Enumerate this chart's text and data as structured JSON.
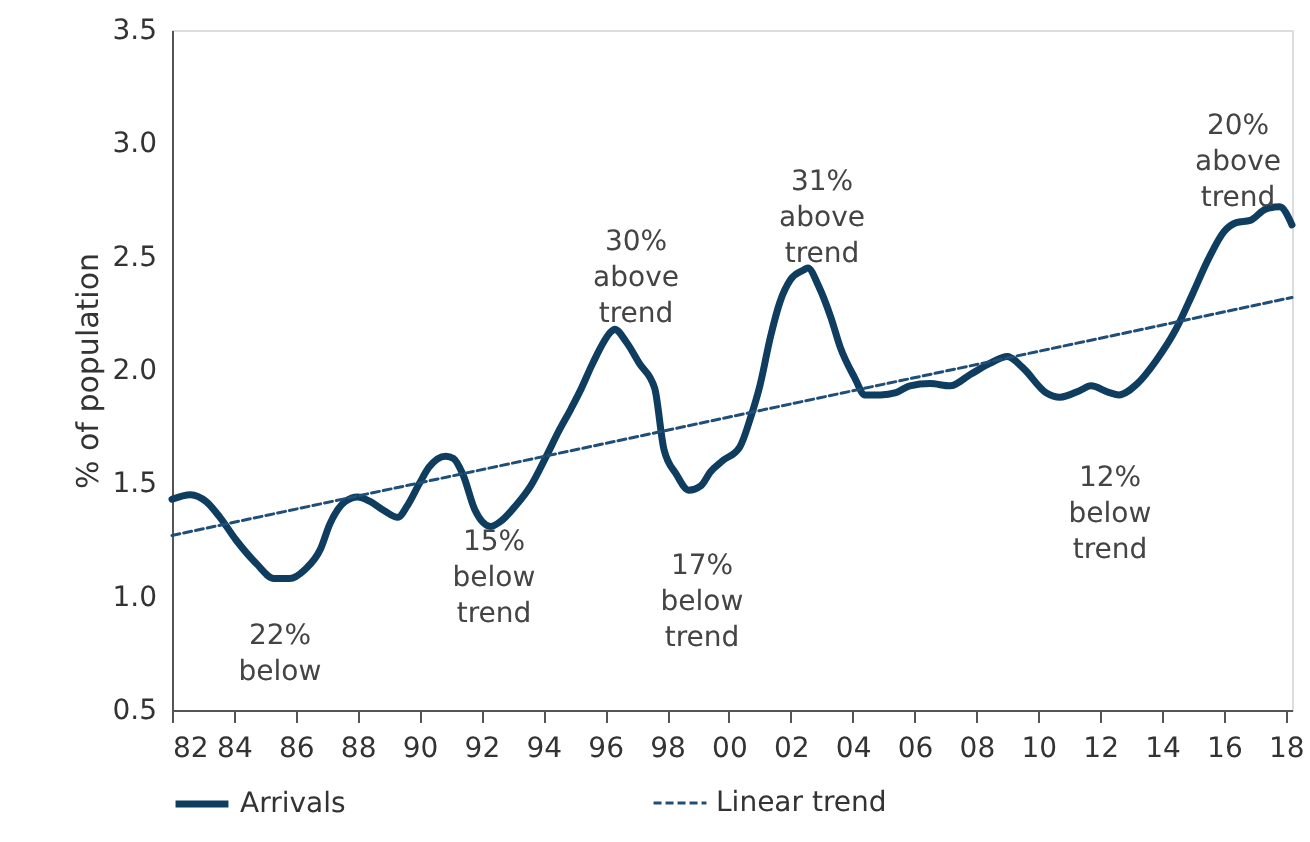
{
  "chart_data": {
    "type": "line",
    "ylabel": "% of population",
    "xlim": [
      1982,
      2018.2
    ],
    "xticks": [
      {
        "value": 1982,
        "label": "82"
      },
      {
        "value": 1984,
        "label": "84"
      },
      {
        "value": 1986,
        "label": "86"
      },
      {
        "value": 1988,
        "label": "88"
      },
      {
        "value": 1990,
        "label": "90"
      },
      {
        "value": 1992,
        "label": "92"
      },
      {
        "value": 1994,
        "label": "94"
      },
      {
        "value": 1996,
        "label": "96"
      },
      {
        "value": 1998,
        "label": "98"
      },
      {
        "value": 2000,
        "label": "00"
      },
      {
        "value": 2002,
        "label": "02"
      },
      {
        "value": 2004,
        "label": "04"
      },
      {
        "value": 2006,
        "label": "06"
      },
      {
        "value": 2008,
        "label": "08"
      },
      {
        "value": 2010,
        "label": "10"
      },
      {
        "value": 2012,
        "label": "12"
      },
      {
        "value": 2014,
        "label": "14"
      },
      {
        "value": 2016,
        "label": "16"
      },
      {
        "value": 2018,
        "label": "18"
      }
    ],
    "ylim": [
      0.5,
      3.5
    ],
    "yticks": [
      0.5,
      {
        "value": 1,
        "label": "1.0"
      },
      1.5,
      {
        "value": 2,
        "label": "2.0"
      },
      2.5,
      {
        "value": 3,
        "label": "3.0"
      },
      3.5
    ],
    "grid": false,
    "legend": "bottom",
    "marker": "none",
    "series": [
      {
        "name": "Arrivals",
        "color": "#0e3d5f",
        "line_style": "solid",
        "x": [
          1982,
          1982.6,
          1983.1,
          1983.55,
          1984.07,
          1984.7,
          1985.3,
          1985.8,
          1986.3,
          1986.8,
          1987.1,
          1987.6,
          1988,
          1988.4,
          1988.85,
          1989.3,
          1989.6,
          1990,
          1990.3,
          1990.85,
          1991.1,
          1991.4,
          1991.8,
          1992.3,
          1992.6,
          1993.1,
          1993.6,
          1994.1,
          1994.5,
          1994.9,
          1995.2,
          1995.6,
          1996.2,
          1996.3,
          1996.7,
          1997.1,
          1997.6,
          1997.9,
          1998.3,
          1998.7,
          1999.1,
          1999.4,
          1999.8,
          2000.35,
          2000.7,
          2001,
          2001.35,
          2001.65,
          2002,
          2002.4,
          2002.55,
          2002.9,
          2003.3,
          2003.6,
          2004.05,
          2004.4,
          2004.9,
          2005.4,
          2005.85,
          2006.5,
          2007.15,
          2007.8,
          2008.45,
          2009,
          2009.5,
          2010.25,
          2010.7,
          2011.35,
          2011.7,
          2012.3,
          2012.6,
          2013.2,
          2013.8,
          2014.45,
          2015,
          2015.5,
          2016.0,
          2016.4,
          2016.85,
          2017.35,
          2017.8,
          2018.2
        ],
        "values": [
          1.43,
          1.45,
          1.42,
          1.35,
          1.25,
          1.15,
          1.08,
          1.08,
          1.12,
          1.21,
          1.32,
          1.42,
          1.44,
          1.42,
          1.38,
          1.35,
          1.4,
          1.5,
          1.57,
          1.62,
          1.61,
          1.54,
          1.38,
          1.31,
          1.33,
          1.4,
          1.49,
          1.62,
          1.73,
          1.83,
          1.91,
          2.03,
          2.17,
          2.18,
          2.12,
          2.03,
          1.92,
          1.65,
          1.54,
          1.47,
          1.49,
          1.55,
          1.6,
          1.66,
          1.79,
          1.93,
          2.15,
          2.3,
          2.4,
          2.44,
          2.45,
          2.37,
          2.23,
          2.1,
          1.97,
          1.89,
          1.89,
          1.9,
          1.93,
          1.94,
          1.93,
          1.98,
          2.03,
          2.06,
          2.01,
          1.9,
          1.88,
          1.91,
          1.93,
          1.9,
          1.89,
          1.94,
          2.04,
          2.18,
          2.34,
          2.49,
          2.61,
          2.65,
          2.66,
          2.71,
          2.72,
          2.64
        ]
      },
      {
        "name": "Linear trend",
        "color": "#1f4e79",
        "line_style": "dashed",
        "x": [
          1982,
          2018.2
        ],
        "values": [
          1.27,
          2.32
        ]
      }
    ],
    "annotations": [
      "22%\nbelow",
      "15%\nbelow\ntrend",
      "30%\nabove\ntrend",
      "17%\nbelow\ntrend",
      "31%\nabove\ntrend",
      "12%\nbelow\ntrend",
      "20%\nabove\ntrend"
    ]
  }
}
